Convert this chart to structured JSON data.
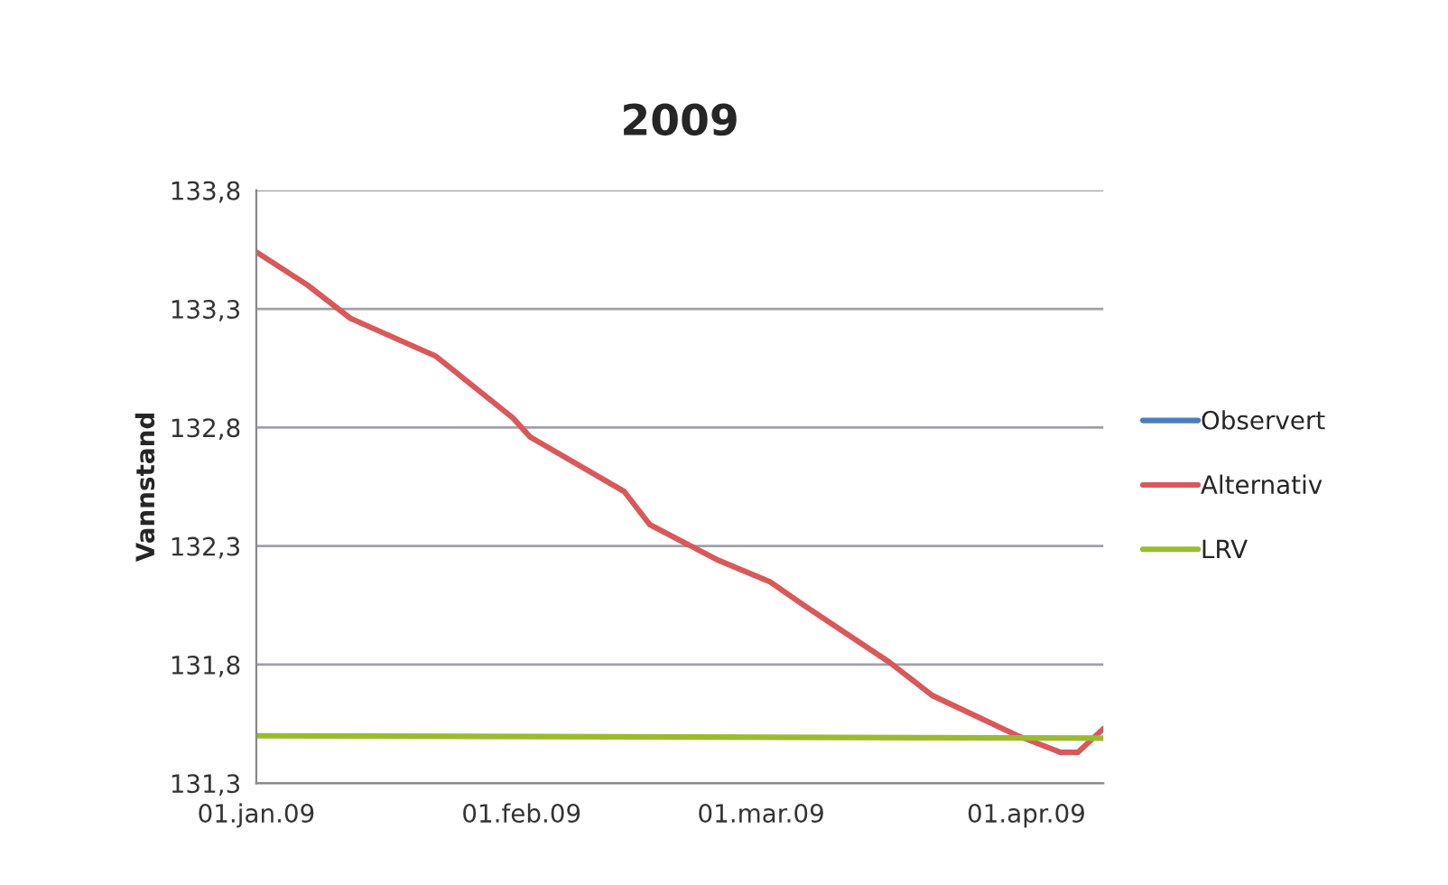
{
  "chart_data": {
    "type": "line",
    "title": "2009",
    "ylabel": "Vannstand",
    "series": [
      {
        "name": "Observert",
        "color": "#4a7ebb"
      },
      {
        "name": "Alternativ",
        "color": "#d9585a",
        "x": [
          "2009-01-01",
          "2009-01-07",
          "2009-01-12",
          "2009-01-22",
          "2009-01-31",
          "2009-02-02",
          "2009-02-13",
          "2009-02-16",
          "2009-02-24",
          "2009-03-02",
          "2009-03-06",
          "2009-03-16",
          "2009-03-21",
          "2009-03-31",
          "2009-04-05",
          "2009-04-07",
          "2009-04-10"
        ],
        "values": [
          133.54,
          133.4,
          133.26,
          133.1,
          132.84,
          132.76,
          132.53,
          132.39,
          132.24,
          132.15,
          132.05,
          131.81,
          131.67,
          131.5,
          131.43,
          131.43,
          131.53
        ]
      },
      {
        "name": "LRV",
        "color": "#9bbb2f",
        "x": [
          "2009-01-01",
          "2009-04-10"
        ],
        "values": [
          131.5,
          131.49
        ]
      }
    ],
    "xlim": [
      "2009-01-01",
      "2009-04-10"
    ],
    "xticks": [
      {
        "value": "2009-01-01",
        "label": "01.jan.09"
      },
      {
        "value": "2009-02-01",
        "label": "01.feb.09"
      },
      {
        "value": "2009-03-01",
        "label": "01.mar.09"
      },
      {
        "value": "2009-04-01",
        "label": "01.apr.09"
      }
    ],
    "ylim": [
      131.3,
      133.8
    ],
    "yticks": [
      {
        "value": 131.3,
        "label": "131,3"
      },
      {
        "value": 131.8,
        "label": "131,8"
      },
      {
        "value": 132.3,
        "label": "132,3"
      },
      {
        "value": 132.8,
        "label": "132,8"
      },
      {
        "value": 133.3,
        "label": "133,3"
      },
      {
        "value": 133.8,
        "label": "133,8"
      }
    ],
    "grid": "y",
    "legend": "right",
    "marker": "none",
    "line_style": "solid"
  }
}
